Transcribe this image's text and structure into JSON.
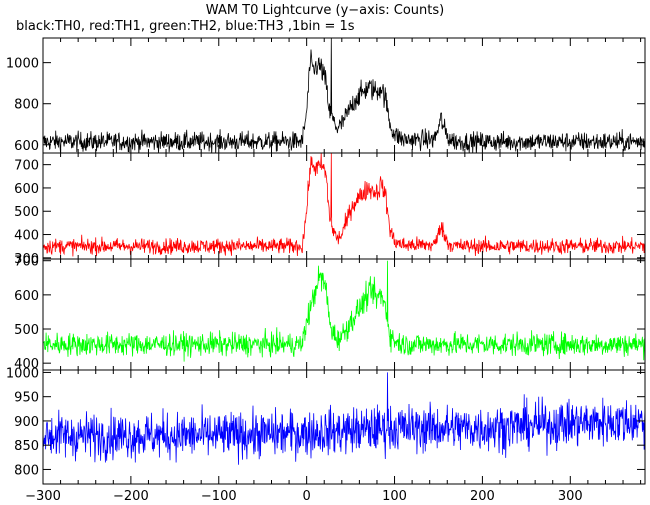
{
  "chart_data": {
    "type": "line",
    "title": "WAM T0 Lightcurve (y−axis: Counts)",
    "subtitle": "black:TH0, red:TH1, green:TH2, blue:TH3 ,1bin = 1s",
    "x_range": [
      -300,
      385
    ],
    "x_ticks": [
      -300,
      -200,
      -100,
      0,
      100,
      200,
      300
    ],
    "x_tick_labels": [
      "−300",
      "−200",
      "−100",
      "0",
      "100",
      "200",
      "300"
    ],
    "grid": false,
    "panels": [
      {
        "series_name": "TH0",
        "color": "#000000",
        "ylim": [
          560,
          1120
        ],
        "y_ticks": [
          600,
          800,
          1000
        ],
        "y_tick_labels": [
          "600",
          "800",
          "1000"
        ],
        "baseline": 615,
        "noise": 24,
        "profile": [
          [
            -300,
            615
          ],
          [
            -5,
            615
          ],
          [
            0,
            760
          ],
          [
            4,
            1000
          ],
          [
            8,
            960
          ],
          [
            12,
            990
          ],
          [
            17,
            970
          ],
          [
            22,
            900
          ],
          [
            26,
            760
          ],
          [
            30,
            720
          ],
          [
            35,
            680
          ],
          [
            40,
            700
          ],
          [
            45,
            740
          ],
          [
            50,
            780
          ],
          [
            55,
            820
          ],
          [
            60,
            840
          ],
          [
            65,
            860
          ],
          [
            70,
            880
          ],
          [
            75,
            870
          ],
          [
            80,
            860
          ],
          [
            85,
            880
          ],
          [
            90,
            820
          ],
          [
            95,
            700
          ],
          [
            100,
            650
          ],
          [
            110,
            625
          ],
          [
            145,
            625
          ],
          [
            150,
            680
          ],
          [
            153,
            730
          ],
          [
            156,
            680
          ],
          [
            162,
            630
          ],
          [
            170,
            615
          ],
          [
            385,
            615
          ]
        ],
        "spikes": [
          [
            28,
            1120
          ]
        ]
      },
      {
        "series_name": "TH1",
        "color": "#ff0000",
        "ylim": [
          295,
          750
        ],
        "y_ticks": [
          300,
          400,
          500,
          600,
          700
        ],
        "y_tick_labels": [
          "300",
          "400",
          "500",
          "600",
          "700"
        ],
        "baseline": 350,
        "noise": 17,
        "profile": [
          [
            -300,
            350
          ],
          [
            -5,
            350
          ],
          [
            0,
            500
          ],
          [
            4,
            690
          ],
          [
            8,
            700
          ],
          [
            12,
            680
          ],
          [
            17,
            700
          ],
          [
            22,
            660
          ],
          [
            26,
            480
          ],
          [
            30,
            420
          ],
          [
            35,
            380
          ],
          [
            40,
            400
          ],
          [
            45,
            450
          ],
          [
            50,
            510
          ],
          [
            55,
            540
          ],
          [
            60,
            560
          ],
          [
            65,
            580
          ],
          [
            70,
            600
          ],
          [
            75,
            590
          ],
          [
            80,
            580
          ],
          [
            85,
            620
          ],
          [
            90,
            560
          ],
          [
            95,
            420
          ],
          [
            100,
            370
          ],
          [
            110,
            355
          ],
          [
            145,
            355
          ],
          [
            150,
            400
          ],
          [
            153,
            450
          ],
          [
            156,
            400
          ],
          [
            162,
            360
          ],
          [
            170,
            350
          ],
          [
            385,
            350
          ]
        ],
        "spikes": [
          [
            28,
            750
          ]
        ]
      },
      {
        "series_name": "TH2",
        "color": "#00ff00",
        "ylim": [
          380,
          705
        ],
        "y_ticks": [
          400,
          500,
          600,
          700
        ],
        "y_tick_labels": [
          "400",
          "500",
          "600",
          "700"
        ],
        "baseline": 455,
        "noise": 17,
        "profile": [
          [
            -300,
            455
          ],
          [
            -5,
            455
          ],
          [
            0,
            520
          ],
          [
            4,
            560
          ],
          [
            8,
            590
          ],
          [
            12,
            640
          ],
          [
            17,
            650
          ],
          [
            22,
            620
          ],
          [
            26,
            520
          ],
          [
            30,
            490
          ],
          [
            35,
            470
          ],
          [
            40,
            480
          ],
          [
            45,
            500
          ],
          [
            50,
            520
          ],
          [
            55,
            540
          ],
          [
            60,
            560
          ],
          [
            65,
            580
          ],
          [
            70,
            600
          ],
          [
            75,
            610
          ],
          [
            80,
            590
          ],
          [
            85,
            600
          ],
          [
            90,
            560
          ],
          [
            95,
            480
          ],
          [
            100,
            465
          ],
          [
            110,
            455
          ],
          [
            385,
            455
          ]
        ],
        "spikes": [
          [
            92,
            700
          ]
        ]
      },
      {
        "series_name": "TH3",
        "color": "#0000ff",
        "ylim": [
          770,
          1005
        ],
        "y_ticks": [
          800,
          850,
          900,
          950,
          1000
        ],
        "y_tick_labels": [
          "800",
          "850",
          "900",
          "950",
          "1000"
        ],
        "baseline": 875,
        "noise": 24,
        "profile": [
          [
            -300,
            870
          ],
          [
            -100,
            870
          ],
          [
            0,
            875
          ],
          [
            100,
            885
          ],
          [
            200,
            885
          ],
          [
            300,
            895
          ],
          [
            385,
            900
          ]
        ],
        "spikes": [
          [
            92,
            1000
          ]
        ]
      }
    ]
  }
}
